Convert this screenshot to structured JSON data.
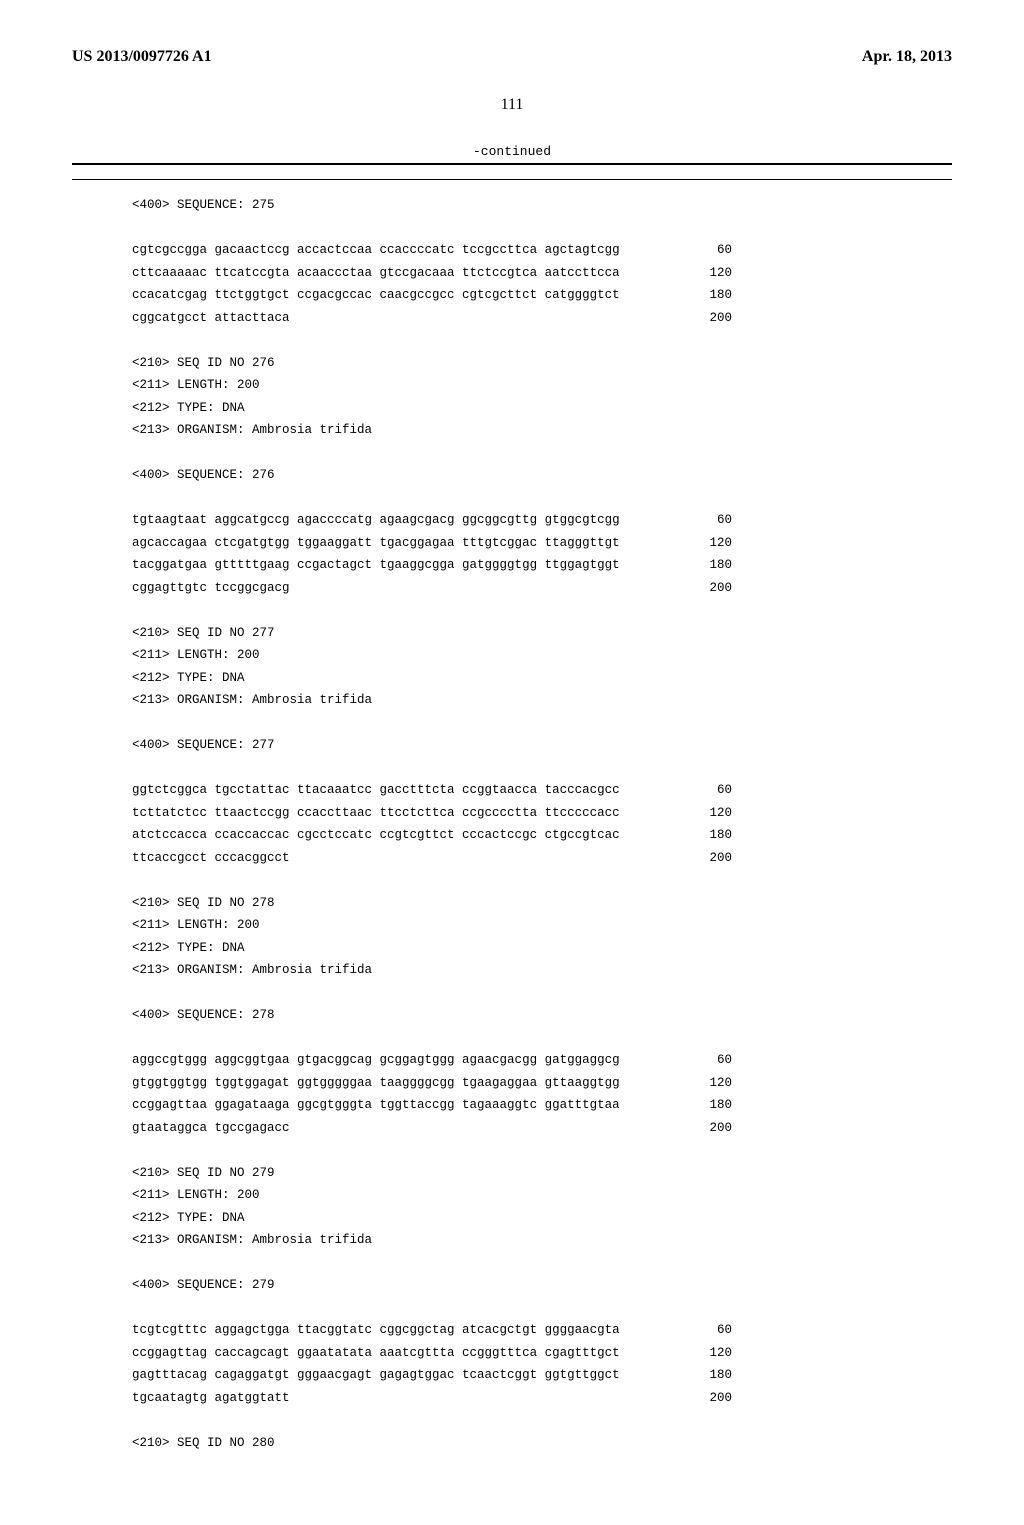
{
  "header": {
    "doc_number": "US 2013/0097726 A1",
    "pub_date": "Apr. 18, 2013"
  },
  "page_number": "111",
  "continued_label": "-continued",
  "sequences": [
    {
      "header": [
        "<400> SEQUENCE: 275"
      ],
      "rows": [
        {
          "text": "cgtcgccgga gacaactccg accactccaa ccaccccatc tccgccttca agctagtcgg",
          "num": "60"
        },
        {
          "text": "cttcaaaaac ttcatccgta acaaccctaa gtccgacaaa ttctccgtca aatccttcca",
          "num": "120"
        },
        {
          "text": "ccacatcgag ttctggtgct ccgacgccac caacgccgcc cgtcgcttct catggggtct",
          "num": "180"
        },
        {
          "text": "cggcatgcct attacttaca",
          "num": "200"
        }
      ]
    },
    {
      "header": [
        "<210> SEQ ID NO 276",
        "<211> LENGTH: 200",
        "<212> TYPE: DNA",
        "<213> ORGANISM: Ambrosia trifida",
        "",
        "<400> SEQUENCE: 276"
      ],
      "rows": [
        {
          "text": "tgtaagtaat aggcatgccg agaccccatg agaagcgacg ggcggcgttg gtggcgtcgg",
          "num": "60"
        },
        {
          "text": "agcaccagaa ctcgatgtgg tggaaggatt tgacggagaa tttgtcggac ttagggttgt",
          "num": "120"
        },
        {
          "text": "tacggatgaa gtttttgaag ccgactagct tgaaggcgga gatggggtgg ttggagtggt",
          "num": "180"
        },
        {
          "text": "cggagttgtc tccggcgacg",
          "num": "200"
        }
      ]
    },
    {
      "header": [
        "<210> SEQ ID NO 277",
        "<211> LENGTH: 200",
        "<212> TYPE: DNA",
        "<213> ORGANISM: Ambrosia trifida",
        "",
        "<400> SEQUENCE: 277"
      ],
      "rows": [
        {
          "text": "ggtctcggca tgcctattac ttacaaatcc gacctttcta ccggtaacca tacccacgcc",
          "num": "60"
        },
        {
          "text": "tcttatctcc ttaactccgg ccaccttaac ttcctcttca ccgcccctta ttcccccacc",
          "num": "120"
        },
        {
          "text": "atctccacca ccaccaccac cgcctccatc ccgtcgttct cccactccgc ctgccgtcac",
          "num": "180"
        },
        {
          "text": "ttcaccgcct cccacggcct",
          "num": "200"
        }
      ]
    },
    {
      "header": [
        "<210> SEQ ID NO 278",
        "<211> LENGTH: 200",
        "<212> TYPE: DNA",
        "<213> ORGANISM: Ambrosia trifida",
        "",
        "<400> SEQUENCE: 278"
      ],
      "rows": [
        {
          "text": "aggccgtggg aggcggtgaa gtgacggcag gcggagtggg agaacgacgg gatggaggcg",
          "num": "60"
        },
        {
          "text": "gtggtggtgg tggtggagat ggtgggggaa taaggggcgg tgaagaggaa gttaaggtgg",
          "num": "120"
        },
        {
          "text": "ccggagttaa ggagataaga ggcgtgggta tggttaccgg tagaaaggtc ggatttgtaa",
          "num": "180"
        },
        {
          "text": "gtaataggca tgccgagacc",
          "num": "200"
        }
      ]
    },
    {
      "header": [
        "<210> SEQ ID NO 279",
        "<211> LENGTH: 200",
        "<212> TYPE: DNA",
        "<213> ORGANISM: Ambrosia trifida",
        "",
        "<400> SEQUENCE: 279"
      ],
      "rows": [
        {
          "text": "tcgtcgtttc aggagctgga ttacggtatc cggcggctag atcacgctgt ggggaacgta",
          "num": "60"
        },
        {
          "text": "ccggagttag caccagcagt ggaatatata aaatcgttta ccgggtttca cgagtttgct",
          "num": "120"
        },
        {
          "text": "gagtttacag cagaggatgt gggaacgagt gagagtggac tcaactcggt ggtgttggct",
          "num": "180"
        },
        {
          "text": "tgcaatagtg agatggtatt",
          "num": "200"
        }
      ]
    },
    {
      "header": [
        "<210> SEQ ID NO 280"
      ],
      "rows": []
    }
  ]
}
